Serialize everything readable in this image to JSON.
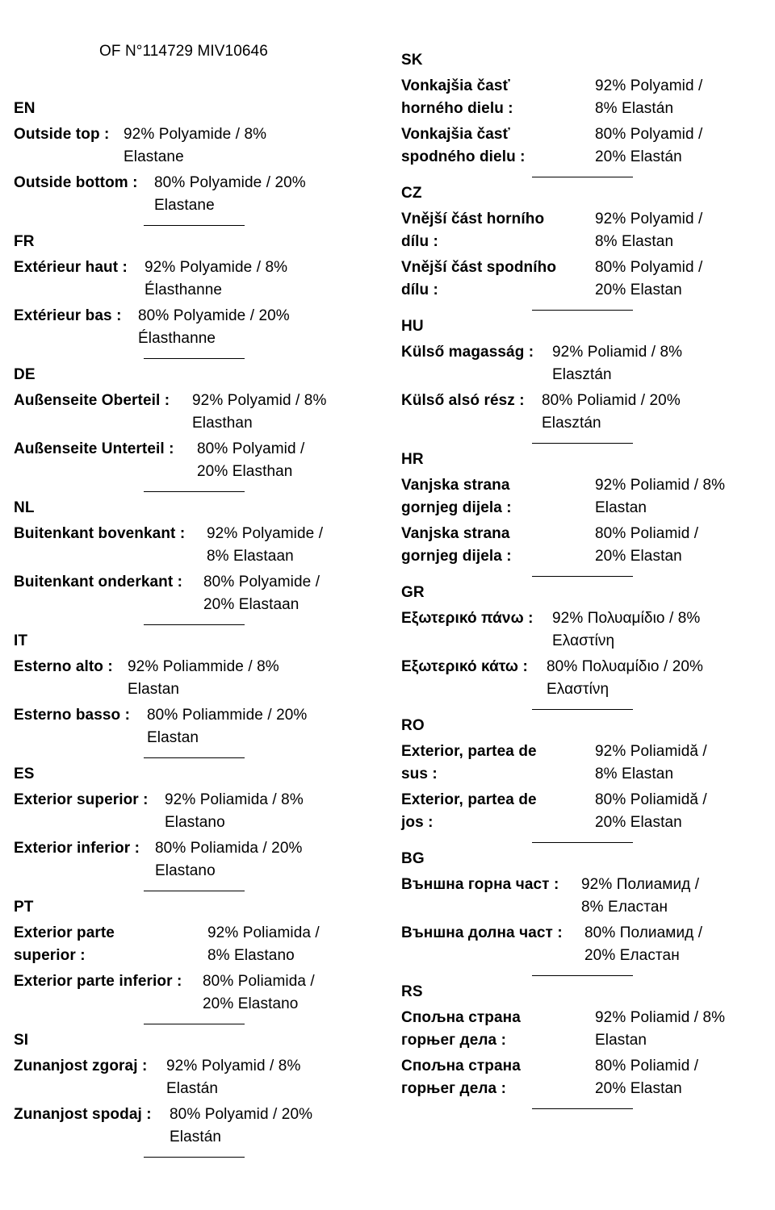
{
  "header": {
    "title": "OF N°114729 MIV10646"
  },
  "left_column": [
    {
      "code": "EN",
      "rows": [
        {
          "label": "Outside top :",
          "value_line1": "92% Polyamide / 8%",
          "value_line2": "Elastane"
        },
        {
          "label": "Outside bottom :",
          "value_line1": "80% Polyamide / 20%",
          "value_line2": "Elastane"
        }
      ]
    },
    {
      "code": "FR",
      "rows": [
        {
          "label": "Extérieur haut :",
          "value_line1": "92% Polyamide / 8%",
          "value_line2": "Élasthanne"
        },
        {
          "label": "Extérieur bas :",
          "value_line1": "80% Polyamide / 20%",
          "value_line2": "Élasthanne"
        }
      ]
    },
    {
      "code": "DE",
      "rows": [
        {
          "label": "Außenseite Oberteil :",
          "value_line1": "92% Polyamid / 8%",
          "value_line2": "Elasthan"
        },
        {
          "label": "Außenseite Unterteil :",
          "value_line1": "80% Polyamid /",
          "value_line2": "20% Elasthan"
        }
      ]
    },
    {
      "code": "NL",
      "rows": [
        {
          "label": "Buitenkant bovenkant :",
          "value_line1": "92% Polyamide /",
          "value_line2": "8% Elastaan"
        },
        {
          "label": "Buitenkant onderkant :",
          "value_line1": "80% Polyamide /",
          "value_line2": "20% Elastaan"
        }
      ]
    },
    {
      "code": "IT",
      "rows": [
        {
          "label": "Esterno alto :",
          "value_line1": "92% Poliammide / 8%",
          "value_line2": "Elastan"
        },
        {
          "label": "Esterno basso :",
          "value_line1": "80% Poliammide / 20%",
          "value_line2": "Elastan"
        }
      ]
    },
    {
      "code": "ES",
      "rows": [
        {
          "label": "Exterior superior :",
          "value_line1": "92% Poliamida / 8%",
          "value_line2": "Elastano"
        },
        {
          "label": "Exterior inferior :",
          "value_line1": "80% Poliamida / 20%",
          "value_line2": "Elastano"
        }
      ]
    },
    {
      "code": "PT",
      "rows": [
        {
          "label": "Exterior parte superior :",
          "value_line1": "92% Poliamida /",
          "value_line2": "8% Elastano"
        },
        {
          "label": "Exterior parte inferior :",
          "value_line1": "80% Poliamida /",
          "value_line2": "20% Elastano"
        }
      ]
    },
    {
      "code": "SI",
      "rows": [
        {
          "label": "Zunanjost zgoraj :",
          "value_line1": "92% Polyamid / 8%",
          "value_line2": "Elastán"
        },
        {
          "label": "Zunanjost spodaj :",
          "value_line1": "80% Polyamid / 20%",
          "value_line2": "Elastán"
        }
      ]
    }
  ],
  "right_column": [
    {
      "code": "SK",
      "rows": [
        {
          "label": "Vonkajšia časť horného dielu :",
          "value_line1": "92% Polyamid /",
          "value_line2": "8% Elastán"
        },
        {
          "label": "Vonkajšia časť spodného dielu :",
          "value_line1": "80% Polyamid /",
          "value_line2": "20% Elastán"
        }
      ]
    },
    {
      "code": "CZ",
      "rows": [
        {
          "label": "Vnější část horního dílu :",
          "value_line1": "92% Polyamid /",
          "value_line2": "8% Elastan"
        },
        {
          "label": "Vnější část spodního dílu :",
          "value_line1": "80% Polyamid /",
          "value_line2": "20% Elastan"
        }
      ]
    },
    {
      "code": "HU",
      "rows": [
        {
          "label": "Külső magasság :",
          "value_line1": "92% Poliamid / 8%",
          "value_line2": "Elasztán"
        },
        {
          "label": "Külső alsó rész :",
          "value_line1": "80% Poliamid / 20%",
          "value_line2": "Elasztán"
        }
      ]
    },
    {
      "code": "HR",
      "rows": [
        {
          "label": "Vanjska strana gornjeg dijela :",
          "value_line1": "92% Poliamid / 8%",
          "value_line2": "Elastan"
        },
        {
          "label": "Vanjska strana gornjeg dijela :",
          "value_line1": "80% Poliamid /",
          "value_line2": "20% Elastan"
        }
      ]
    },
    {
      "code": "GR",
      "rows": [
        {
          "label": "Εξωτερικό πάνω :",
          "value_line1": "92% Πολυαμίδιο / 8%",
          "value_line2": "Ελαστίνη"
        },
        {
          "label": "Εξωτερικό κάτω :",
          "value_line1": "80% Πολυαμίδιο / 20%",
          "value_line2": "Ελαστίνη"
        }
      ]
    },
    {
      "code": "RO",
      "rows": [
        {
          "label": "Exterior, partea de sus :",
          "value_line1": "92% Poliamidă /",
          "value_line2": "8% Elastan"
        },
        {
          "label": "Exterior, partea de jos :",
          "value_line1": "80% Poliamidă /",
          "value_line2": "20% Elastan"
        }
      ]
    },
    {
      "code": "BG",
      "rows": [
        {
          "label": "Външна горна част :",
          "value_line1": "92% Полиамид /",
          "value_line2": "8% Еластан"
        },
        {
          "label": "Външна долна част :",
          "value_line1": "80% Полиамид /",
          "value_line2": "20% Еластан"
        }
      ]
    },
    {
      "code": "RS",
      "rows": [
        {
          "label": "Спољна страна горњег дела :",
          "value_line1": "92% Poliamid / 8%",
          "value_line2": "Elastan"
        },
        {
          "label": "Спољна страна горњег дела :",
          "value_line1": "80% Poliamid /",
          "value_line2": "20% Elastan"
        }
      ]
    }
  ]
}
